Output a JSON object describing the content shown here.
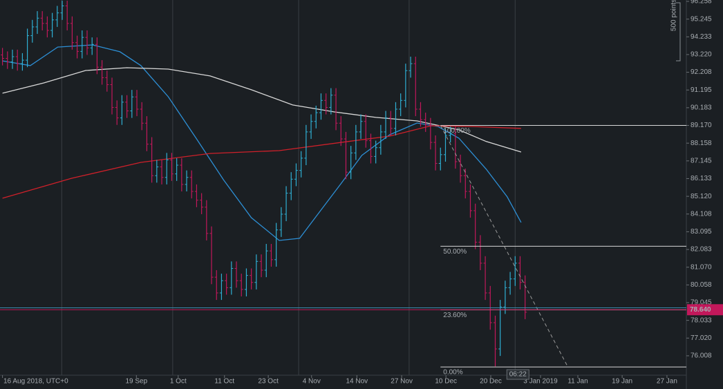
{
  "chart_data": {
    "type": "ohlc",
    "x": [
      0,
      1,
      2,
      3,
      4,
      5,
      6,
      7,
      8,
      9,
      10,
      11,
      12,
      13,
      14,
      15,
      16,
      17,
      18,
      19,
      20,
      21,
      22,
      23,
      24,
      25,
      26,
      27,
      28,
      29,
      30,
      31,
      32,
      33,
      34,
      35,
      36,
      37,
      38,
      39,
      40,
      41,
      42,
      43,
      44,
      45,
      46,
      47,
      48,
      49,
      50,
      51,
      52,
      53,
      54,
      55,
      56,
      57,
      58,
      59,
      60,
      61,
      62,
      63,
      64,
      65,
      66,
      67,
      68,
      69,
      70,
      71,
      72,
      73,
      74,
      75,
      76,
      77,
      78,
      79,
      80,
      81,
      82,
      83,
      84,
      85,
      86,
      87,
      88,
      89,
      90,
      91,
      92,
      93,
      94,
      95,
      96,
      97,
      98,
      99,
      100,
      101,
      102,
      103,
      104,
      105
    ],
    "open": [
      93.2,
      93.0,
      92.8,
      93.1,
      92.7,
      92.9,
      94.3,
      94.8,
      95.3,
      95.0,
      94.6,
      95.2,
      95.6,
      96.0,
      95.0,
      93.9,
      93.4,
      94.2,
      93.6,
      93.8,
      92.5,
      91.9,
      91.5,
      90.2,
      89.6,
      90.5,
      90.0,
      90.8,
      90.1,
      89.3,
      88.1,
      86.3,
      86.8,
      86.2,
      87.2,
      86.4,
      86.9,
      85.8,
      86.2,
      85.4,
      84.9,
      84.5,
      83.0,
      80.5,
      79.6,
      80.3,
      79.9,
      81.0,
      80.3,
      79.8,
      80.6,
      80.2,
      81.4,
      80.9,
      82.0,
      81.5,
      83.2,
      84.1,
      85.3,
      86.1,
      86.6,
      87.3,
      88.8,
      89.4,
      89.9,
      90.6,
      90.2,
      90.9,
      89.3,
      88.4,
      86.5,
      87.6,
      88.8,
      89.4,
      88.3,
      87.4,
      87.9,
      88.8,
      89.6,
      89.0,
      90.1,
      90.6,
      92.3,
      92.7,
      90.1,
      89.5,
      89.2,
      88.2,
      87.0,
      87.5,
      88.6,
      88.7,
      87.1,
      86.3,
      85.4,
      84.3,
      82.5,
      81.3,
      79.6,
      77.9,
      76.4,
      78.8,
      79.9,
      80.4,
      81.3,
      80.2
    ],
    "high": [
      93.6,
      93.4,
      93.5,
      93.5,
      93.3,
      94.7,
      95.2,
      95.7,
      95.7,
      95.4,
      95.6,
      96.0,
      96.3,
      96.3,
      95.4,
      94.3,
      94.6,
      94.6,
      94.2,
      94.2,
      92.9,
      92.3,
      91.9,
      90.6,
      90.9,
      90.9,
      91.2,
      91.2,
      90.5,
      89.7,
      88.5,
      87.2,
      87.2,
      87.6,
      87.6,
      87.3,
      87.3,
      86.6,
      86.6,
      85.8,
      85.3,
      84.9,
      83.4,
      80.9,
      80.7,
      80.7,
      81.4,
      81.4,
      80.7,
      81.0,
      81.0,
      81.8,
      81.8,
      82.4,
      82.4,
      83.6,
      84.5,
      85.7,
      86.5,
      87.0,
      87.7,
      89.2,
      89.8,
      90.3,
      91.0,
      91.0,
      91.3,
      91.3,
      89.7,
      88.8,
      88.0,
      89.2,
      89.8,
      89.8,
      88.7,
      88.3,
      89.2,
      90.0,
      90.0,
      90.5,
      91.0,
      92.7,
      93.1,
      93.1,
      90.5,
      89.9,
      89.6,
      88.6,
      87.9,
      89.0,
      89.1,
      89.1,
      87.5,
      86.7,
      85.8,
      84.7,
      82.9,
      81.7,
      80.0,
      78.3,
      79.2,
      80.3,
      80.8,
      81.7,
      81.7,
      80.6
    ],
    "low": [
      92.6,
      92.4,
      92.4,
      92.3,
      92.3,
      92.5,
      93.9,
      94.4,
      94.6,
      94.2,
      94.2,
      94.8,
      95.2,
      94.6,
      93.5,
      93.0,
      93.0,
      93.2,
      93.2,
      92.1,
      91.5,
      91.1,
      89.8,
      89.2,
      89.2,
      89.6,
      89.6,
      89.7,
      88.9,
      87.7,
      85.9,
      85.9,
      85.8,
      85.8,
      86.0,
      86.0,
      85.4,
      85.4,
      85.0,
      84.5,
      84.1,
      82.6,
      80.1,
      79.2,
      79.2,
      79.5,
      79.5,
      79.9,
      79.4,
      79.4,
      79.8,
      79.8,
      80.5,
      80.5,
      81.1,
      81.1,
      82.8,
      83.7,
      84.9,
      85.7,
      86.2,
      86.9,
      88.4,
      89.0,
      89.5,
      89.8,
      89.8,
      88.9,
      88.0,
      86.1,
      86.1,
      87.2,
      88.4,
      87.9,
      87.0,
      87.0,
      87.5,
      88.4,
      88.6,
      88.6,
      89.7,
      90.2,
      91.9,
      89.7,
      89.1,
      88.8,
      87.8,
      86.6,
      86.6,
      87.1,
      88.2,
      86.7,
      85.9,
      85.0,
      83.9,
      82.1,
      80.9,
      79.2,
      77.5,
      75.4,
      76.0,
      78.4,
      79.5,
      80.0,
      79.8,
      78.1
    ],
    "close": [
      93.0,
      92.8,
      93.1,
      92.7,
      92.9,
      94.3,
      94.8,
      95.3,
      95.0,
      94.6,
      95.2,
      95.6,
      96.0,
      95.0,
      93.9,
      93.4,
      94.2,
      93.6,
      93.8,
      92.5,
      91.9,
      91.5,
      90.2,
      89.6,
      90.5,
      90.0,
      90.8,
      90.1,
      89.3,
      88.1,
      86.3,
      86.8,
      86.2,
      87.2,
      86.4,
      86.9,
      85.8,
      86.2,
      85.4,
      84.9,
      84.5,
      83.0,
      80.5,
      79.6,
      80.3,
      79.9,
      81.0,
      80.3,
      79.8,
      80.6,
      80.2,
      81.4,
      80.9,
      82.0,
      81.5,
      83.2,
      84.1,
      85.3,
      86.1,
      86.6,
      87.3,
      88.8,
      89.4,
      89.9,
      90.6,
      90.2,
      90.9,
      89.3,
      88.4,
      86.5,
      87.6,
      88.8,
      89.4,
      88.3,
      87.4,
      87.9,
      88.8,
      89.6,
      89.0,
      90.1,
      90.6,
      92.3,
      92.7,
      90.1,
      89.5,
      89.2,
      88.2,
      87.0,
      87.5,
      88.6,
      88.7,
      87.1,
      86.3,
      85.4,
      84.3,
      82.5,
      81.3,
      79.6,
      77.9,
      76.4,
      78.8,
      79.9,
      80.4,
      81.3,
      80.2,
      78.5
    ],
    "up_color": "#2fb0d4",
    "down_color": "#c2185b",
    "xlim": [
      -0.5,
      137.4
    ],
    "ylim": [
      74.9,
      96.337
    ],
    "xticks": [
      {
        "value": 0,
        "label": "16 Aug 2018, UTC+0"
      },
      {
        "value": 26.9,
        "label": "19 Sep"
      },
      {
        "value": 35.3,
        "label": "1 Oct"
      },
      {
        "value": 44.6,
        "label": "11 Oct"
      },
      {
        "value": 53.4,
        "label": "23 Oct"
      },
      {
        "value": 62.1,
        "label": "4 Nov"
      },
      {
        "value": 71.2,
        "label": "14 Nov"
      },
      {
        "value": 80.2,
        "label": "27 Nov"
      },
      {
        "value": 89.1,
        "label": "10 Dec"
      },
      {
        "value": 98.1,
        "label": "20 Dec"
      },
      {
        "value": 108.1,
        "label": "3 Jan 2019"
      },
      {
        "value": 115.6,
        "label": "11 Jan"
      },
      {
        "value": 124.5,
        "label": "19 Jan"
      },
      {
        "value": 133.5,
        "label": "27 Jan"
      }
    ],
    "yticks": [
      96.258,
      95.245,
      94.233,
      {
        "value": 93.22,
        "label": "93.220"
      },
      92.208,
      91.195,
      90.183,
      {
        "value": 89.17,
        "label": "89.170"
      },
      88.158,
      87.145,
      86.133,
      {
        "value": 85.12,
        "label": "85.120"
      },
      84.108,
      83.095,
      82.083,
      {
        "value": 81.07,
        "label": "81.070"
      },
      80.058,
      79.045,
      78.033,
      {
        "value": 77.02,
        "label": "77.020"
      },
      76.008
    ],
    "xgrid": [
      11.9,
      34.2,
      59.5,
      81.7,
      103
    ],
    "moving_averages": [
      {
        "color": "#2d8fd5",
        "x": [
          0,
          5.6,
          11.1,
          18.1,
          23.6,
          27.8,
          33.3,
          38.9,
          44.4,
          50,
          55.6,
          59.7,
          63.9,
          68.1,
          72.2,
          77.8,
          83.3,
          87.5,
          91.7,
          97.2,
          101.4,
          104.2
        ],
        "values": [
          92.86,
          92.59,
          93.65,
          93.77,
          93.38,
          92.59,
          90.81,
          88.44,
          86.07,
          83.9,
          82.6,
          82.72,
          84.3,
          85.88,
          87.46,
          88.64,
          89.31,
          89.11,
          88.44,
          86.67,
          85.09,
          83.63
        ]
      },
      {
        "color": "#d9d9d9",
        "x": [
          0,
          8.3,
          16.7,
          25,
          33.3,
          41.7,
          50,
          58.3,
          66.7,
          75,
          83.3,
          91.7,
          97.2,
          104.2
        ],
        "values": [
          91.01,
          91.6,
          92.31,
          92.47,
          92.39,
          92.0,
          91.21,
          90.34,
          89.94,
          89.63,
          89.43,
          88.92,
          88.25,
          87.65
        ]
      },
      {
        "color": "#d0202a",
        "x": [
          0,
          13.9,
          27.8,
          41.7,
          55.6,
          69.4,
          77.8,
          86.1,
          94.4,
          104.2
        ],
        "values": [
          85.01,
          86.15,
          87.06,
          87.57,
          87.73,
          88.25,
          88.56,
          89.15,
          89.11,
          89.0
        ]
      }
    ],
    "fib": {
      "color": "#d8d8d8",
      "x_start": 88,
      "levels": [
        {
          "value": 89.17,
          "label": "100.00%"
        },
        {
          "value": 82.27,
          "label": "50.00%"
        },
        {
          "value": 78.63,
          "label": "23.60%"
        },
        {
          "value": 75.37,
          "label": "0.00%"
        }
      ]
    },
    "trend": {
      "x": [
        88,
        113.6
      ],
      "y": [
        89.17,
        75.37
      ],
      "color": "#9a9a9a"
    },
    "price_line": {
      "value": 78.64,
      "label": "78.640",
      "color": "#c2185b"
    },
    "ask_line": {
      "value": 78.75,
      "color": "#3c8bb0"
    },
    "scale_note": "500 points",
    "countdown": "06:22"
  }
}
